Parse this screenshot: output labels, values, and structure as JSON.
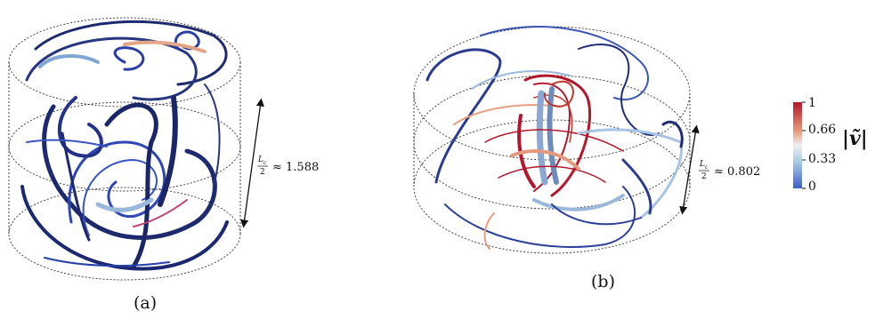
{
  "panel_a": {
    "caption": "(a)",
    "height_label": "≈ 1.588",
    "frac_num": "L",
    "frac_num_sub": "c",
    "frac_den": "2"
  },
  "panel_b": {
    "caption": "(b)",
    "height_label": "≈ 0.802",
    "frac_num": "L",
    "frac_num_sub": "c",
    "frac_den": "2"
  },
  "colorbar": {
    "title": "|ṽ|",
    "ticks": [
      "1",
      "0.66",
      "0.33",
      "0"
    ],
    "colors": [
      "#b2182b",
      "#ef8a62",
      "#f7f7f7",
      "#92c5de",
      "#2166ac"
    ]
  }
}
